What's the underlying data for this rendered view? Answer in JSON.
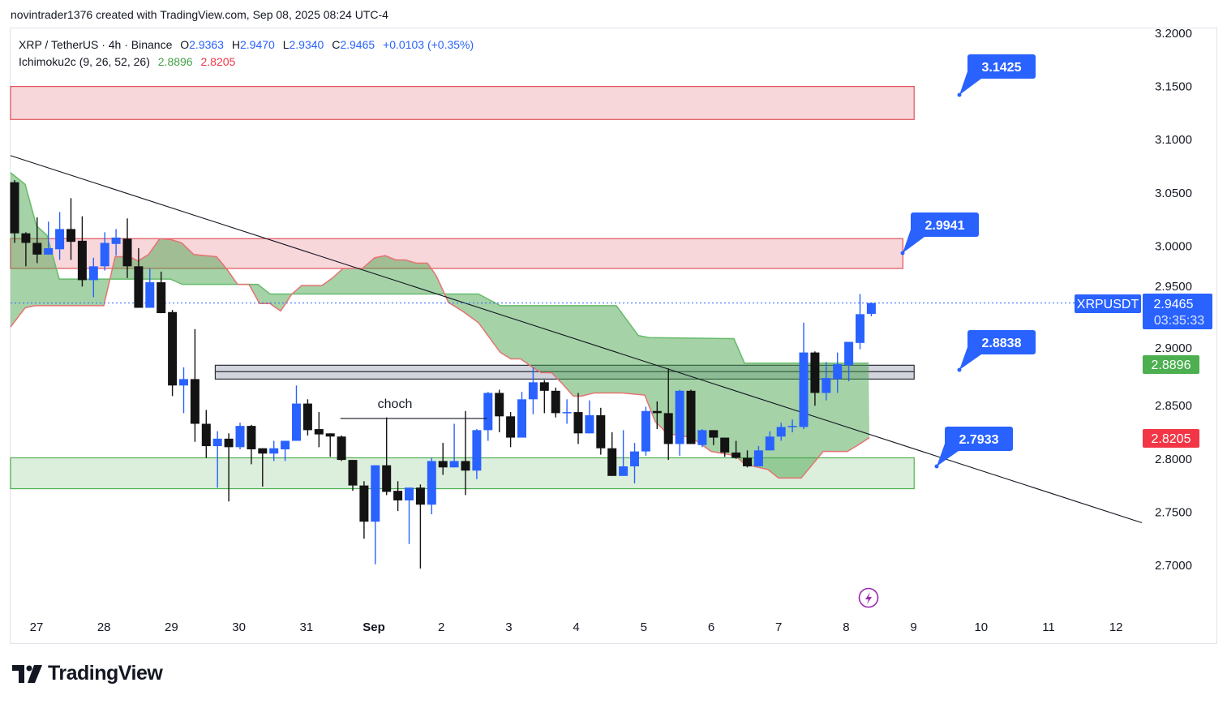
{
  "header": {
    "credit": "novintrader1376 created with TradingView.com, Sep 08, 2025 08:24 UTC-4"
  },
  "legend": {
    "symbol": "XRP / TetherUS · 4h · Binance",
    "open_label": "O",
    "open": "2.9363",
    "high_label": "H",
    "high": "2.9470",
    "low_label": "L",
    "low": "2.9340",
    "close_label": "C",
    "close": "2.9465",
    "change": "+0.0103 (+0.35%)",
    "indicator": "Ichimoku2c (9, 26, 52, 26)",
    "ind_value_1": "2.8896",
    "ind_value_2": "2.8205"
  },
  "badges": {
    "symbol": "XRPUSDT",
    "last_price": "2.9465",
    "countdown": "03:35:33",
    "span_a": "2.8896",
    "span_b": "2.8205"
  },
  "callouts": [
    "3.1425",
    "2.9941",
    "2.8838",
    "2.7933"
  ],
  "annotation": "choch",
  "logo": "TradingView",
  "colors": {
    "bull": "#2962ff",
    "bear": "#131313",
    "cloud": "#4caf50",
    "span_a": "#66bb6a",
    "span_b": "#e57373",
    "supply_zone": "#f8d7da",
    "demand_zone": "#dcefdc",
    "mid_zone": "#d1d4dc",
    "accent": "#2962ff",
    "green_badge": "#4caf50",
    "red_badge": "#f23645"
  },
  "chart_data": {
    "type": "candlestick",
    "title": "XRP / TetherUS · 4h · Binance",
    "interval": "4h",
    "x_ticks": [
      "27",
      "28",
      "29",
      "30",
      "31",
      "Sep",
      "2",
      "3",
      "4",
      "5",
      "6",
      "7",
      "8",
      "9",
      "10",
      "11",
      "12"
    ],
    "y_ticks": [
      "3.2000",
      "3.1500",
      "3.1000",
      "3.0500",
      "3.0000",
      "2.9500",
      "2.9000",
      "2.8500",
      "2.8000",
      "2.7500",
      "2.7000"
    ],
    "ylim": [
      2.7,
      3.2
    ],
    "candles_ohlc": [
      [
        3.06,
        3.062,
        3.003,
        3.012
      ],
      [
        3.012,
        3.013,
        2.981,
        3.003
      ],
      [
        3.003,
        3.027,
        2.984,
        2.992
      ],
      [
        2.992,
        3.023,
        2.992,
        2.998
      ],
      [
        2.997,
        3.032,
        2.987,
        3.016
      ],
      [
        3.016,
        3.045,
        2.987,
        3.004
      ],
      [
        3.005,
        3.028,
        2.962,
        2.968
      ],
      [
        2.968,
        2.989,
        2.952,
        2.981
      ],
      [
        2.981,
        3.013,
        2.977,
        3.003
      ],
      [
        3.002,
        3.016,
        2.991,
        3.008
      ],
      [
        3.007,
        3.026,
        2.97,
        2.981
      ],
      [
        2.981,
        2.998,
        2.942,
        2.942
      ],
      [
        2.942,
        2.979,
        2.942,
        2.966
      ],
      [
        2.966,
        2.976,
        2.937,
        2.937
      ],
      [
        2.938,
        2.94,
        2.859,
        2.869
      ],
      [
        2.869,
        2.886,
        2.843,
        2.875
      ],
      [
        2.875,
        2.922,
        2.816,
        2.833
      ],
      [
        2.833,
        2.846,
        2.801,
        2.812
      ],
      [
        2.812,
        2.826,
        2.773,
        2.819
      ],
      [
        2.819,
        2.824,
        2.76,
        2.811
      ],
      [
        2.811,
        2.834,
        2.809,
        2.831
      ],
      [
        2.831,
        2.832,
        2.795,
        2.809
      ],
      [
        2.81,
        2.81,
        2.774,
        2.805
      ],
      [
        2.805,
        2.817,
        2.798,
        2.81
      ],
      [
        2.809,
        2.817,
        2.798,
        2.817
      ],
      [
        2.817,
        2.869,
        2.817,
        2.852
      ],
      [
        2.852,
        2.856,
        2.822,
        2.827
      ],
      [
        2.828,
        2.844,
        2.811,
        2.823
      ],
      [
        2.824,
        2.824,
        2.802,
        2.821
      ],
      [
        2.821,
        2.822,
        2.798,
        2.799
      ],
      [
        2.799,
        2.799,
        2.77,
        2.775
      ],
      [
        2.775,
        2.779,
        2.725,
        2.741
      ],
      [
        2.741,
        2.794,
        2.701,
        2.794
      ],
      [
        2.794,
        2.839,
        2.766,
        2.769
      ],
      [
        2.77,
        2.779,
        2.751,
        2.761
      ],
      [
        2.761,
        2.773,
        2.72,
        2.773
      ],
      [
        2.773,
        2.776,
        2.697,
        2.757
      ],
      [
        2.757,
        2.801,
        2.748,
        2.798
      ],
      [
        2.798,
        2.815,
        2.785,
        2.792
      ],
      [
        2.792,
        2.833,
        2.792,
        2.798
      ],
      [
        2.798,
        2.845,
        2.766,
        2.789
      ],
      [
        2.789,
        2.828,
        2.781,
        2.827
      ],
      [
        2.827,
        2.863,
        2.817,
        2.862
      ],
      [
        2.862,
        2.865,
        2.825,
        2.84
      ],
      [
        2.84,
        2.844,
        2.811,
        2.82
      ],
      [
        2.82,
        2.863,
        2.82,
        2.856
      ],
      [
        2.856,
        2.886,
        2.842,
        2.872
      ],
      [
        2.872,
        2.874,
        2.843,
        2.864
      ],
      [
        2.864,
        2.867,
        2.839,
        2.843
      ],
      [
        2.843,
        2.856,
        2.833,
        2.844
      ],
      [
        2.844,
        2.862,
        2.814,
        2.824
      ],
      [
        2.824,
        2.855,
        2.824,
        2.841
      ],
      [
        2.841,
        2.848,
        2.804,
        2.81
      ],
      [
        2.81,
        2.825,
        2.784,
        2.784
      ],
      [
        2.784,
        2.827,
        2.784,
        2.793
      ],
      [
        2.793,
        2.815,
        2.777,
        2.807
      ],
      [
        2.807,
        2.849,
        2.803,
        2.845
      ],
      [
        2.845,
        2.854,
        2.828,
        2.843
      ],
      [
        2.843,
        2.885,
        2.799,
        2.814
      ],
      [
        2.814,
        2.865,
        2.803,
        2.864
      ],
      [
        2.864,
        2.865,
        2.814,
        2.814
      ],
      [
        2.813,
        2.828,
        2.811,
        2.827
      ],
      [
        2.827,
        2.827,
        2.813,
        2.82
      ],
      [
        2.82,
        2.82,
        2.802,
        2.806
      ],
      [
        2.806,
        2.817,
        2.8,
        2.801
      ],
      [
        2.801,
        2.808,
        2.792,
        2.793
      ],
      [
        2.793,
        2.812,
        2.793,
        2.808
      ],
      [
        2.808,
        2.826,
        2.808,
        2.821
      ],
      [
        2.821,
        2.834,
        2.817,
        2.83
      ],
      [
        2.83,
        2.837,
        2.825,
        2.831
      ],
      [
        2.83,
        2.928,
        2.828,
        2.9
      ],
      [
        2.9,
        2.901,
        2.85,
        2.862
      ],
      [
        2.862,
        2.891,
        2.855,
        2.876
      ],
      [
        2.875,
        2.9,
        2.862,
        2.889
      ],
      [
        2.888,
        2.91,
        2.873,
        2.91
      ],
      [
        2.909,
        2.955,
        2.903,
        2.936
      ],
      [
        2.9363,
        2.947,
        2.934,
        2.9465
      ]
    ],
    "ichimoku": {
      "span_a": [
        [
          -0.36,
          3.069
        ],
        [
          0.94,
          3.058
        ],
        [
          1.94,
          3.019
        ],
        [
          2.88,
          3.01
        ],
        [
          3.96,
          2.969
        ],
        [
          13.81,
          2.969
        ],
        [
          14.89,
          2.964
        ],
        [
          21.58,
          2.964
        ],
        [
          22.66,
          2.955
        ],
        [
          41.15,
          2.955
        ],
        [
          43.09,
          2.944
        ],
        [
          53.38,
          2.944
        ],
        [
          55.32,
          2.916
        ],
        [
          56.26,
          2.914
        ],
        [
          63.81,
          2.913
        ],
        [
          64.75,
          2.89
        ],
        [
          75.76,
          2.89
        ]
      ],
      "span_b": [
        [
          -0.36,
          2.924
        ],
        [
          0.94,
          2.942
        ],
        [
          1.8,
          2.944
        ],
        [
          7.91,
          2.944
        ],
        [
          8.92,
          2.99
        ],
        [
          10.22,
          2.99
        ],
        [
          10.94,
          2.986
        ],
        [
          11.87,
          2.992
        ],
        [
          12.88,
          3.007
        ],
        [
          13.88,
          3.006
        ],
        [
          14.82,
          3.003
        ],
        [
          15.9,
          2.992
        ],
        [
          17.91,
          2.99
        ],
        [
          18.85,
          2.978
        ],
        [
          19.78,
          2.964
        ],
        [
          20.79,
          2.964
        ],
        [
          21.73,
          2.946
        ],
        [
          22.66,
          2.946
        ],
        [
          23.6,
          2.939
        ],
        [
          24.6,
          2.955
        ],
        [
          25.47,
          2.963
        ],
        [
          27.27,
          2.963
        ],
        [
          28.2,
          2.97
        ],
        [
          29.14,
          2.979
        ],
        [
          30.86,
          2.979
        ],
        [
          31.94,
          2.989
        ],
        [
          32.88,
          2.991
        ],
        [
          33.81,
          2.987
        ],
        [
          34.68,
          2.987
        ],
        [
          35.61,
          2.984
        ],
        [
          36.62,
          2.984
        ],
        [
          37.41,
          2.972
        ],
        [
          38.49,
          2.947
        ],
        [
          39.71,
          2.939
        ],
        [
          41.15,
          2.928
        ],
        [
          43.09,
          2.9
        ],
        [
          44.03,
          2.894
        ],
        [
          44.89,
          2.894
        ],
        [
          45.97,
          2.886
        ],
        [
          46.69,
          2.881
        ],
        [
          47.63,
          2.881
        ],
        [
          48.56,
          2.871
        ],
        [
          49.57,
          2.859
        ],
        [
          50.29,
          2.859
        ],
        [
          51.44,
          2.862
        ],
        [
          53.88,
          2.862
        ],
        [
          55.9,
          2.86
        ],
        [
          56.83,
          2.835
        ],
        [
          57.7,
          2.826
        ],
        [
          58.42,
          2.823
        ],
        [
          60.07,
          2.82
        ],
        [
          61.8,
          2.807
        ],
        [
          63.96,
          2.803
        ],
        [
          64.75,
          2.795
        ],
        [
          66.83,
          2.79
        ],
        [
          67.77,
          2.782
        ],
        [
          69.78,
          2.782
        ],
        [
          71.73,
          2.807
        ],
        [
          73.88,
          2.807
        ],
        [
          74.82,
          2.813
        ],
        [
          75.83,
          2.82
        ]
      ]
    },
    "zones": [
      {
        "name": "supply-zone-upper",
        "top": 3.15,
        "bottom": 3.119,
        "from_bar": -0.36,
        "to_bar": 79.8,
        "kind": "supply"
      },
      {
        "name": "supply-zone-lower",
        "top": 3.007,
        "bottom": 2.979,
        "from_bar": -0.36,
        "to_bar": 78.8,
        "kind": "supply"
      },
      {
        "name": "mid-zone",
        "top": 2.888,
        "bottom": 2.875,
        "mid": 2.882,
        "from_bar": 17.8,
        "to_bar": 79.8,
        "kind": "mid"
      },
      {
        "name": "demand-zone",
        "top": 2.801,
        "bottom": 2.772,
        "from_bar": -0.36,
        "to_bar": 79.8,
        "kind": "demand"
      }
    ],
    "trendline": [
      [
        -0.36,
        3.085
      ],
      [
        100.0,
        2.74
      ]
    ],
    "choch_level": {
      "price": 2.838,
      "from_bar": 28.9,
      "to_bar": 41.9
    },
    "callout_levels": [
      {
        "price": 3.1425,
        "bar": 83.8
      },
      {
        "price": 2.9941,
        "bar": 78.8
      },
      {
        "price": 2.8838,
        "bar": 83.8
      },
      {
        "price": 2.7933,
        "bar": 81.8
      }
    ],
    "last_price": 2.9465
  }
}
